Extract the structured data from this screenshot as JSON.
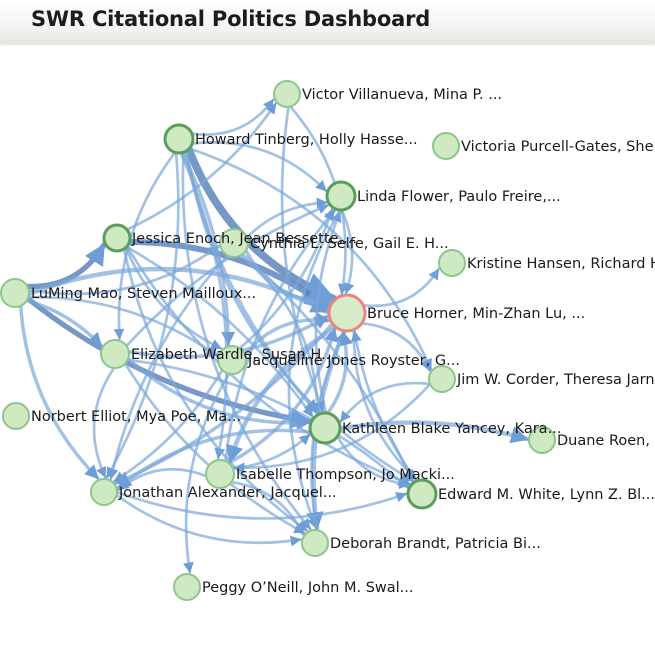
{
  "header": {
    "title": "SWR Citational Politics Dashboard"
  },
  "colors": {
    "node_fill": "#cfe9c3",
    "node_stroke": "#8cc68a",
    "node_stroke_heavy": "#5a9e5e",
    "focus_fill": "#d6ecc9",
    "focus_stroke": "#e8857c",
    "edge": "#7aa6d9",
    "edge_dark": "#5f86bd"
  },
  "graph": {
    "nodes": [
      {
        "id": "victor",
        "label": "Victor Villanueva, Mina P. ...",
        "kind": "normal"
      },
      {
        "id": "howard",
        "label": "Howard Tinberg, Holly Hasse...",
        "kind": "heavy"
      },
      {
        "id": "victoria",
        "label": "Victoria Purcell-Gates, She...",
        "kind": "normal"
      },
      {
        "id": "linda",
        "label": "Linda Flower, Paulo Freire,...",
        "kind": "heavy"
      },
      {
        "id": "jessica",
        "label": "Jessica Enoch, Jean Bessette,...",
        "kind": "heavy"
      },
      {
        "id": "cynthia",
        "label": "Cynthia L. Selfe, Gail E. H...",
        "kind": "normal"
      },
      {
        "id": "kristine",
        "label": "Kristine Hansen, Richard H...",
        "kind": "normal"
      },
      {
        "id": "luming",
        "label": "LuMing Mao, Steven Mailloux...",
        "kind": "normal"
      },
      {
        "id": "bruce",
        "label": "Bruce Horner, Min-Zhan Lu, ...",
        "kind": "focus"
      },
      {
        "id": "elizabeth",
        "label": "Elizabeth Wardle, Susan H...",
        "kind": "normal"
      },
      {
        "id": "jacqueline",
        "label": "Jacqueline Jones Royster, G...",
        "kind": "normal"
      },
      {
        "id": "jimcorder",
        "label": "Jim W. Corder, Theresa Jarn...",
        "kind": "normal"
      },
      {
        "id": "norbert",
        "label": "Norbert Elliot, Mya Poe, Ma...",
        "kind": "normal"
      },
      {
        "id": "kathleen",
        "label": "Kathleen Blake Yancey, Kara...",
        "kind": "heavy"
      },
      {
        "id": "duane",
        "label": "Duane Roen, E...",
        "kind": "normal"
      },
      {
        "id": "isabelle",
        "label": "Isabelle Thompson, Jo Macki...",
        "kind": "normal"
      },
      {
        "id": "jonathan",
        "label": "Jonathan Alexander, Jacquel...",
        "kind": "normal"
      },
      {
        "id": "edward",
        "label": "Edward M. White, Lynn Z. Bl...",
        "kind": "heavy"
      },
      {
        "id": "deborah",
        "label": "Deborah Brandt, Patricia Bi...",
        "kind": "normal"
      },
      {
        "id": "peggy",
        "label": "Peggy O’Neill, John M. Swal...",
        "kind": "normal"
      }
    ],
    "edges": [
      {
        "s": "howard",
        "t": "bruce",
        "w": 8
      },
      {
        "s": "jessica",
        "t": "bruce",
        "w": 6
      },
      {
        "s": "luming",
        "t": "jessica",
        "w": 5
      },
      {
        "s": "luming",
        "t": "bruce",
        "w": 4
      },
      {
        "s": "luming",
        "t": "kathleen",
        "w": 5
      },
      {
        "s": "luming",
        "t": "elizabeth",
        "w": 3
      },
      {
        "s": "luming",
        "t": "jonathan",
        "w": 3
      },
      {
        "s": "luming",
        "t": "cynthia",
        "w": 2
      },
      {
        "s": "luming",
        "t": "jacqueline",
        "w": 2
      },
      {
        "s": "howard",
        "t": "victor",
        "w": 2
      },
      {
        "s": "howard",
        "t": "linda",
        "w": 2
      },
      {
        "s": "howard",
        "t": "kathleen",
        "w": 3
      },
      {
        "s": "howard",
        "t": "jacqueline",
        "w": 3
      },
      {
        "s": "howard",
        "t": "elizabeth",
        "w": 2
      },
      {
        "s": "howard",
        "t": "deborah",
        "w": 2
      },
      {
        "s": "howard",
        "t": "isabelle",
        "w": 2
      },
      {
        "s": "howard",
        "t": "edward",
        "w": 2
      },
      {
        "s": "howard",
        "t": "jimcorder",
        "w": 2
      },
      {
        "s": "jessica",
        "t": "victor",
        "w": 2
      },
      {
        "s": "jessica",
        "t": "kathleen",
        "w": 2
      },
      {
        "s": "jessica",
        "t": "jacqueline",
        "w": 2
      },
      {
        "s": "jessica",
        "t": "deborah",
        "w": 2
      },
      {
        "s": "cynthia",
        "t": "linda",
        "w": 2
      },
      {
        "s": "cynthia",
        "t": "bruce",
        "w": 3
      },
      {
        "s": "cynthia",
        "t": "kathleen",
        "w": 2
      },
      {
        "s": "cynthia",
        "t": "jonathan",
        "w": 2
      },
      {
        "s": "elizabeth",
        "t": "linda",
        "w": 2
      },
      {
        "s": "elizabeth",
        "t": "bruce",
        "w": 3
      },
      {
        "s": "elizabeth",
        "t": "kathleen",
        "w": 3
      },
      {
        "s": "elizabeth",
        "t": "edward",
        "w": 2
      },
      {
        "s": "elizabeth",
        "t": "jonathan",
        "w": 2
      },
      {
        "s": "jacqueline",
        "t": "bruce",
        "w": 3
      },
      {
        "s": "jacqueline",
        "t": "linda",
        "w": 2
      },
      {
        "s": "jacqueline",
        "t": "jonathan",
        "w": 2
      },
      {
        "s": "jacqueline",
        "t": "peggy",
        "w": 2
      },
      {
        "s": "isabelle",
        "t": "bruce",
        "w": 3
      },
      {
        "s": "isabelle",
        "t": "linda",
        "w": 2
      },
      {
        "s": "isabelle",
        "t": "jonathan",
        "w": 2
      },
      {
        "s": "isabelle",
        "t": "deborah",
        "w": 2
      },
      {
        "s": "isabelle",
        "t": "kathleen",
        "w": 2
      },
      {
        "s": "kathleen",
        "t": "duane",
        "w": 4
      },
      {
        "s": "kathleen",
        "t": "bruce",
        "w": 3
      },
      {
        "s": "kathleen",
        "t": "jonathan",
        "w": 3
      },
      {
        "s": "kathleen",
        "t": "linda",
        "w": 2
      },
      {
        "s": "bruce",
        "t": "kristine",
        "w": 2
      },
      {
        "s": "bruce",
        "t": "jimcorder",
        "w": 2
      },
      {
        "s": "bruce",
        "t": "deborah",
        "w": 4
      },
      {
        "s": "bruce",
        "t": "jonathan",
        "w": 3
      },
      {
        "s": "bruce",
        "t": "isabelle",
        "w": 4
      },
      {
        "s": "bruce",
        "t": "edward",
        "w": 2
      },
      {
        "s": "linda",
        "t": "bruce",
        "w": 2
      },
      {
        "s": "linda",
        "t": "deborah",
        "w": 2
      },
      {
        "s": "victor",
        "t": "bruce",
        "w": 2
      },
      {
        "s": "victor",
        "t": "kathleen",
        "w": 2
      },
      {
        "s": "edward",
        "t": "bruce",
        "w": 2
      },
      {
        "s": "jonathan",
        "t": "edward",
        "w": 2
      },
      {
        "s": "jonathan",
        "t": "deborah",
        "w": 2
      },
      {
        "s": "deborah",
        "t": "bruce",
        "w": 2
      },
      {
        "s": "jimcorder",
        "t": "kathleen",
        "w": 2
      },
      {
        "s": "jimcorder",
        "t": "isabelle",
        "w": 2
      },
      {
        "s": "elizabeth",
        "t": "deborah",
        "w": 2
      },
      {
        "s": "cynthia",
        "t": "edward",
        "w": 2
      },
      {
        "s": "jessica",
        "t": "edward",
        "w": 2
      },
      {
        "s": "kathleen",
        "t": "edward",
        "w": 2
      },
      {
        "s": "howard",
        "t": "jonathan",
        "w": 2
      }
    ]
  }
}
